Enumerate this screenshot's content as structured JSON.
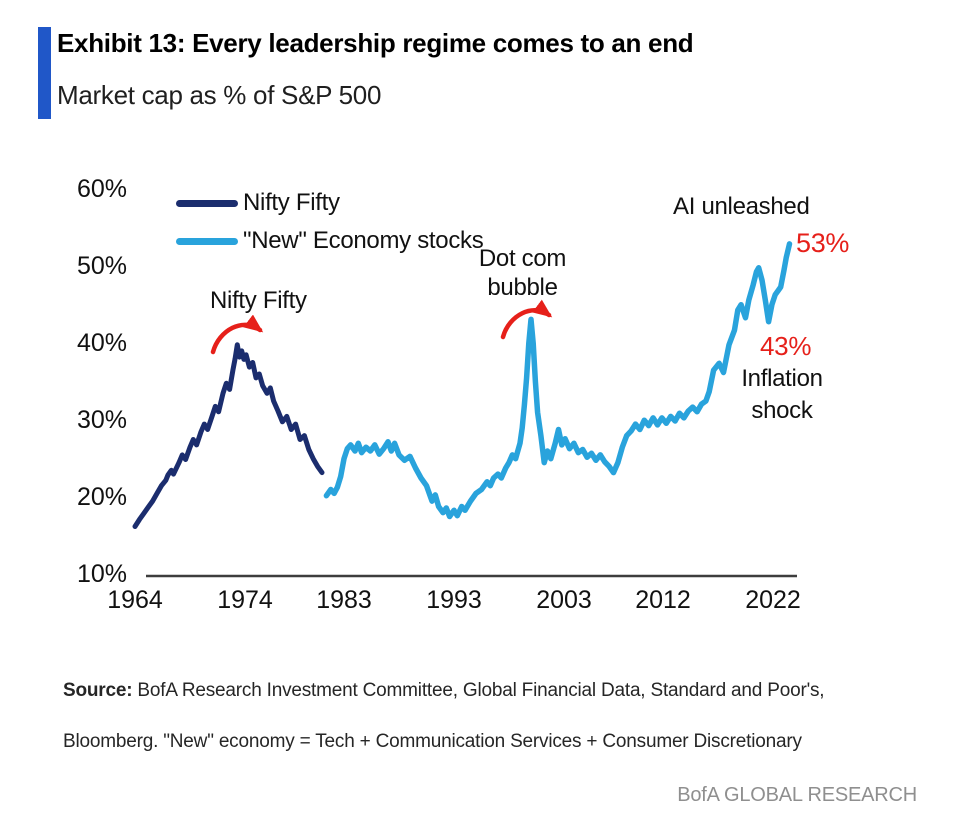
{
  "header": {
    "exhibit_title": "Exhibit 13: Every leadership regime comes to an end",
    "subtitle": "Market cap as % of S&P 500",
    "accent_color": "#2057c8"
  },
  "chart_data": {
    "type": "line",
    "title": "Exhibit 13: Every leadership regime comes to an end",
    "ylabel": "Market cap as % of S&P 500",
    "xlabel": "",
    "ylim": [
      10,
      60
    ],
    "xlim": [
      1963,
      2025
    ],
    "grid": false,
    "legend_position": "top-left",
    "y_ticks": [
      "60%",
      "50%",
      "40%",
      "30%",
      "20%",
      "10%"
    ],
    "x_ticks": [
      "1964",
      "1974",
      "1983",
      "1993",
      "2003",
      "2012",
      "2022"
    ],
    "arrow_color": "#e6201a",
    "axis_color": "#3d3d3d",
    "series": [
      {
        "name": "Nifty Fifty",
        "color": "#1b2d6e",
        "points": [
          [
            1964.0,
            16.3
          ],
          [
            1964.4,
            17.2
          ],
          [
            1964.8,
            18.0
          ],
          [
            1965.2,
            18.8
          ],
          [
            1965.6,
            19.6
          ],
          [
            1966.0,
            20.6
          ],
          [
            1966.4,
            21.6
          ],
          [
            1966.8,
            22.3
          ],
          [
            1967.0,
            23.0
          ],
          [
            1967.3,
            23.6
          ],
          [
            1967.5,
            23.1
          ],
          [
            1968.0,
            24.6
          ],
          [
            1968.3,
            25.6
          ],
          [
            1968.6,
            25.0
          ],
          [
            1969.0,
            26.6
          ],
          [
            1969.3,
            27.6
          ],
          [
            1969.6,
            26.9
          ],
          [
            1970.0,
            28.6
          ],
          [
            1970.3,
            29.6
          ],
          [
            1970.6,
            28.9
          ],
          [
            1971.0,
            30.6
          ],
          [
            1971.3,
            31.9
          ],
          [
            1971.6,
            31.2
          ],
          [
            1972.0,
            33.6
          ],
          [
            1972.3,
            34.9
          ],
          [
            1972.6,
            34.1
          ],
          [
            1972.9,
            36.6
          ],
          [
            1973.1,
            38.1
          ],
          [
            1973.3,
            39.9
          ],
          [
            1973.5,
            38.3
          ],
          [
            1973.7,
            39.1
          ],
          [
            1973.9,
            38.0
          ],
          [
            1974.1,
            38.6
          ],
          [
            1974.4,
            37.0
          ],
          [
            1974.7,
            37.6
          ],
          [
            1975.0,
            35.6
          ],
          [
            1975.3,
            36.1
          ],
          [
            1975.6,
            34.6
          ],
          [
            1976.0,
            33.6
          ],
          [
            1976.3,
            34.3
          ],
          [
            1976.6,
            32.6
          ],
          [
            1977.0,
            31.3
          ],
          [
            1977.4,
            29.9
          ],
          [
            1977.8,
            30.6
          ],
          [
            1978.2,
            28.9
          ],
          [
            1978.6,
            29.6
          ],
          [
            1979.0,
            27.6
          ],
          [
            1979.4,
            28.1
          ],
          [
            1979.8,
            26.3
          ],
          [
            1980.2,
            25.1
          ],
          [
            1980.6,
            24.1
          ],
          [
            1981.0,
            23.3
          ]
        ]
      },
      {
        "name": "\"New\" Economy stocks",
        "color": "#29a3dc",
        "points": [
          [
            1981.4,
            20.3
          ],
          [
            1981.8,
            21.1
          ],
          [
            1982.1,
            20.6
          ],
          [
            1982.4,
            21.4
          ],
          [
            1982.7,
            22.8
          ],
          [
            1983.0,
            25.1
          ],
          [
            1983.3,
            26.4
          ],
          [
            1983.6,
            26.9
          ],
          [
            1984.0,
            26.1
          ],
          [
            1984.3,
            27.1
          ],
          [
            1984.6,
            25.9
          ],
          [
            1985.0,
            26.6
          ],
          [
            1985.4,
            26.1
          ],
          [
            1985.8,
            26.9
          ],
          [
            1986.2,
            25.7
          ],
          [
            1986.6,
            26.4
          ],
          [
            1987.0,
            27.3
          ],
          [
            1987.3,
            26.1
          ],
          [
            1987.6,
            27.1
          ],
          [
            1988.0,
            25.6
          ],
          [
            1988.5,
            24.9
          ],
          [
            1989.0,
            25.4
          ],
          [
            1989.5,
            23.9
          ],
          [
            1990.0,
            22.6
          ],
          [
            1990.5,
            21.6
          ],
          [
            1991.0,
            19.6
          ],
          [
            1991.3,
            20.4
          ],
          [
            1991.6,
            18.9
          ],
          [
            1992.0,
            18.1
          ],
          [
            1992.3,
            18.7
          ],
          [
            1992.6,
            17.6
          ],
          [
            1993.0,
            18.4
          ],
          [
            1993.3,
            17.7
          ],
          [
            1993.7,
            18.9
          ],
          [
            1994.0,
            18.4
          ],
          [
            1994.5,
            19.6
          ],
          [
            1995.0,
            20.6
          ],
          [
            1995.5,
            21.1
          ],
          [
            1996.0,
            22.1
          ],
          [
            1996.3,
            21.6
          ],
          [
            1996.6,
            22.6
          ],
          [
            1997.0,
            23.1
          ],
          [
            1997.3,
            22.6
          ],
          [
            1997.7,
            23.9
          ],
          [
            1998.0,
            24.6
          ],
          [
            1998.3,
            25.6
          ],
          [
            1998.6,
            25.1
          ],
          [
            1999.0,
            27.1
          ],
          [
            1999.2,
            29.1
          ],
          [
            1999.4,
            32.1
          ],
          [
            1999.6,
            35.6
          ],
          [
            1999.8,
            40.1
          ],
          [
            2000.0,
            43.2
          ],
          [
            2000.2,
            40.1
          ],
          [
            2000.4,
            35.1
          ],
          [
            2000.6,
            31.1
          ],
          [
            2000.9,
            28.1
          ],
          [
            2001.2,
            24.6
          ],
          [
            2001.5,
            26.1
          ],
          [
            2001.8,
            25.1
          ],
          [
            2002.2,
            27.1
          ],
          [
            2002.5,
            28.9
          ],
          [
            2002.8,
            26.9
          ],
          [
            2003.1,
            27.7
          ],
          [
            2003.5,
            26.4
          ],
          [
            2003.9,
            27.1
          ],
          [
            2004.3,
            25.9
          ],
          [
            2004.7,
            26.3
          ],
          [
            2005.1,
            25.3
          ],
          [
            2005.5,
            25.8
          ],
          [
            2005.9,
            24.9
          ],
          [
            2006.3,
            25.6
          ],
          [
            2006.7,
            24.7
          ],
          [
            2007.1,
            24.1
          ],
          [
            2007.5,
            23.3
          ],
          [
            2007.9,
            24.6
          ],
          [
            2008.3,
            26.6
          ],
          [
            2008.7,
            28.1
          ],
          [
            2009.1,
            28.7
          ],
          [
            2009.5,
            29.6
          ],
          [
            2009.9,
            28.9
          ],
          [
            2010.3,
            30.1
          ],
          [
            2010.7,
            29.4
          ],
          [
            2011.1,
            30.4
          ],
          [
            2011.5,
            29.5
          ],
          [
            2011.9,
            30.4
          ],
          [
            2012.3,
            29.7
          ],
          [
            2012.7,
            30.6
          ],
          [
            2013.1,
            30.0
          ],
          [
            2013.5,
            31.0
          ],
          [
            2013.9,
            30.4
          ],
          [
            2014.3,
            31.3
          ],
          [
            2014.7,
            31.8
          ],
          [
            2015.1,
            31.2
          ],
          [
            2015.5,
            32.2
          ],
          [
            2015.9,
            32.6
          ],
          [
            2016.2,
            33.8
          ],
          [
            2016.6,
            36.6
          ],
          [
            2017.1,
            37.5
          ],
          [
            2017.5,
            36.3
          ],
          [
            2018.0,
            39.9
          ],
          [
            2018.5,
            41.8
          ],
          [
            2018.8,
            44.4
          ],
          [
            2019.1,
            45.1
          ],
          [
            2019.5,
            43.4
          ],
          [
            2019.8,
            45.7
          ],
          [
            2020.2,
            47.7
          ],
          [
            2020.5,
            49.4
          ],
          [
            2020.7,
            49.9
          ],
          [
            2021.0,
            48.3
          ],
          [
            2021.3,
            45.7
          ],
          [
            2021.6,
            42.9
          ],
          [
            2021.9,
            45.1
          ],
          [
            2022.2,
            46.4
          ],
          [
            2022.5,
            47.0
          ],
          [
            2022.7,
            47.4
          ],
          [
            2023.0,
            49.6
          ],
          [
            2023.2,
            51.2
          ],
          [
            2023.5,
            53.0
          ]
        ]
      }
    ],
    "annotations": [
      {
        "id": "nifty-fifty",
        "text": "Nifty Fifty",
        "color": "#111111"
      },
      {
        "id": "dotcom-bubble",
        "text": "Dot com\nbubble",
        "color": "#111111"
      },
      {
        "id": "ai-unleashed",
        "text": "AI unleashed",
        "color": "#111111"
      },
      {
        "id": "value-53",
        "text": "53%",
        "color": "#e6201a"
      },
      {
        "id": "value-43",
        "text": "43%",
        "color": "#e6201a"
      },
      {
        "id": "inflation-shock",
        "text": "Inflation\nshock",
        "color": "#111111"
      }
    ]
  },
  "footer": {
    "source_label": "Source:",
    "source_line1": " BofA Research Investment Committee, Global Financial Data, Standard and Poor's,",
    "source_line2": "Bloomberg. \"New\" economy = Tech + Communication Services + Consumer Discretionary",
    "brand": "BofA GLOBAL RESEARCH"
  }
}
